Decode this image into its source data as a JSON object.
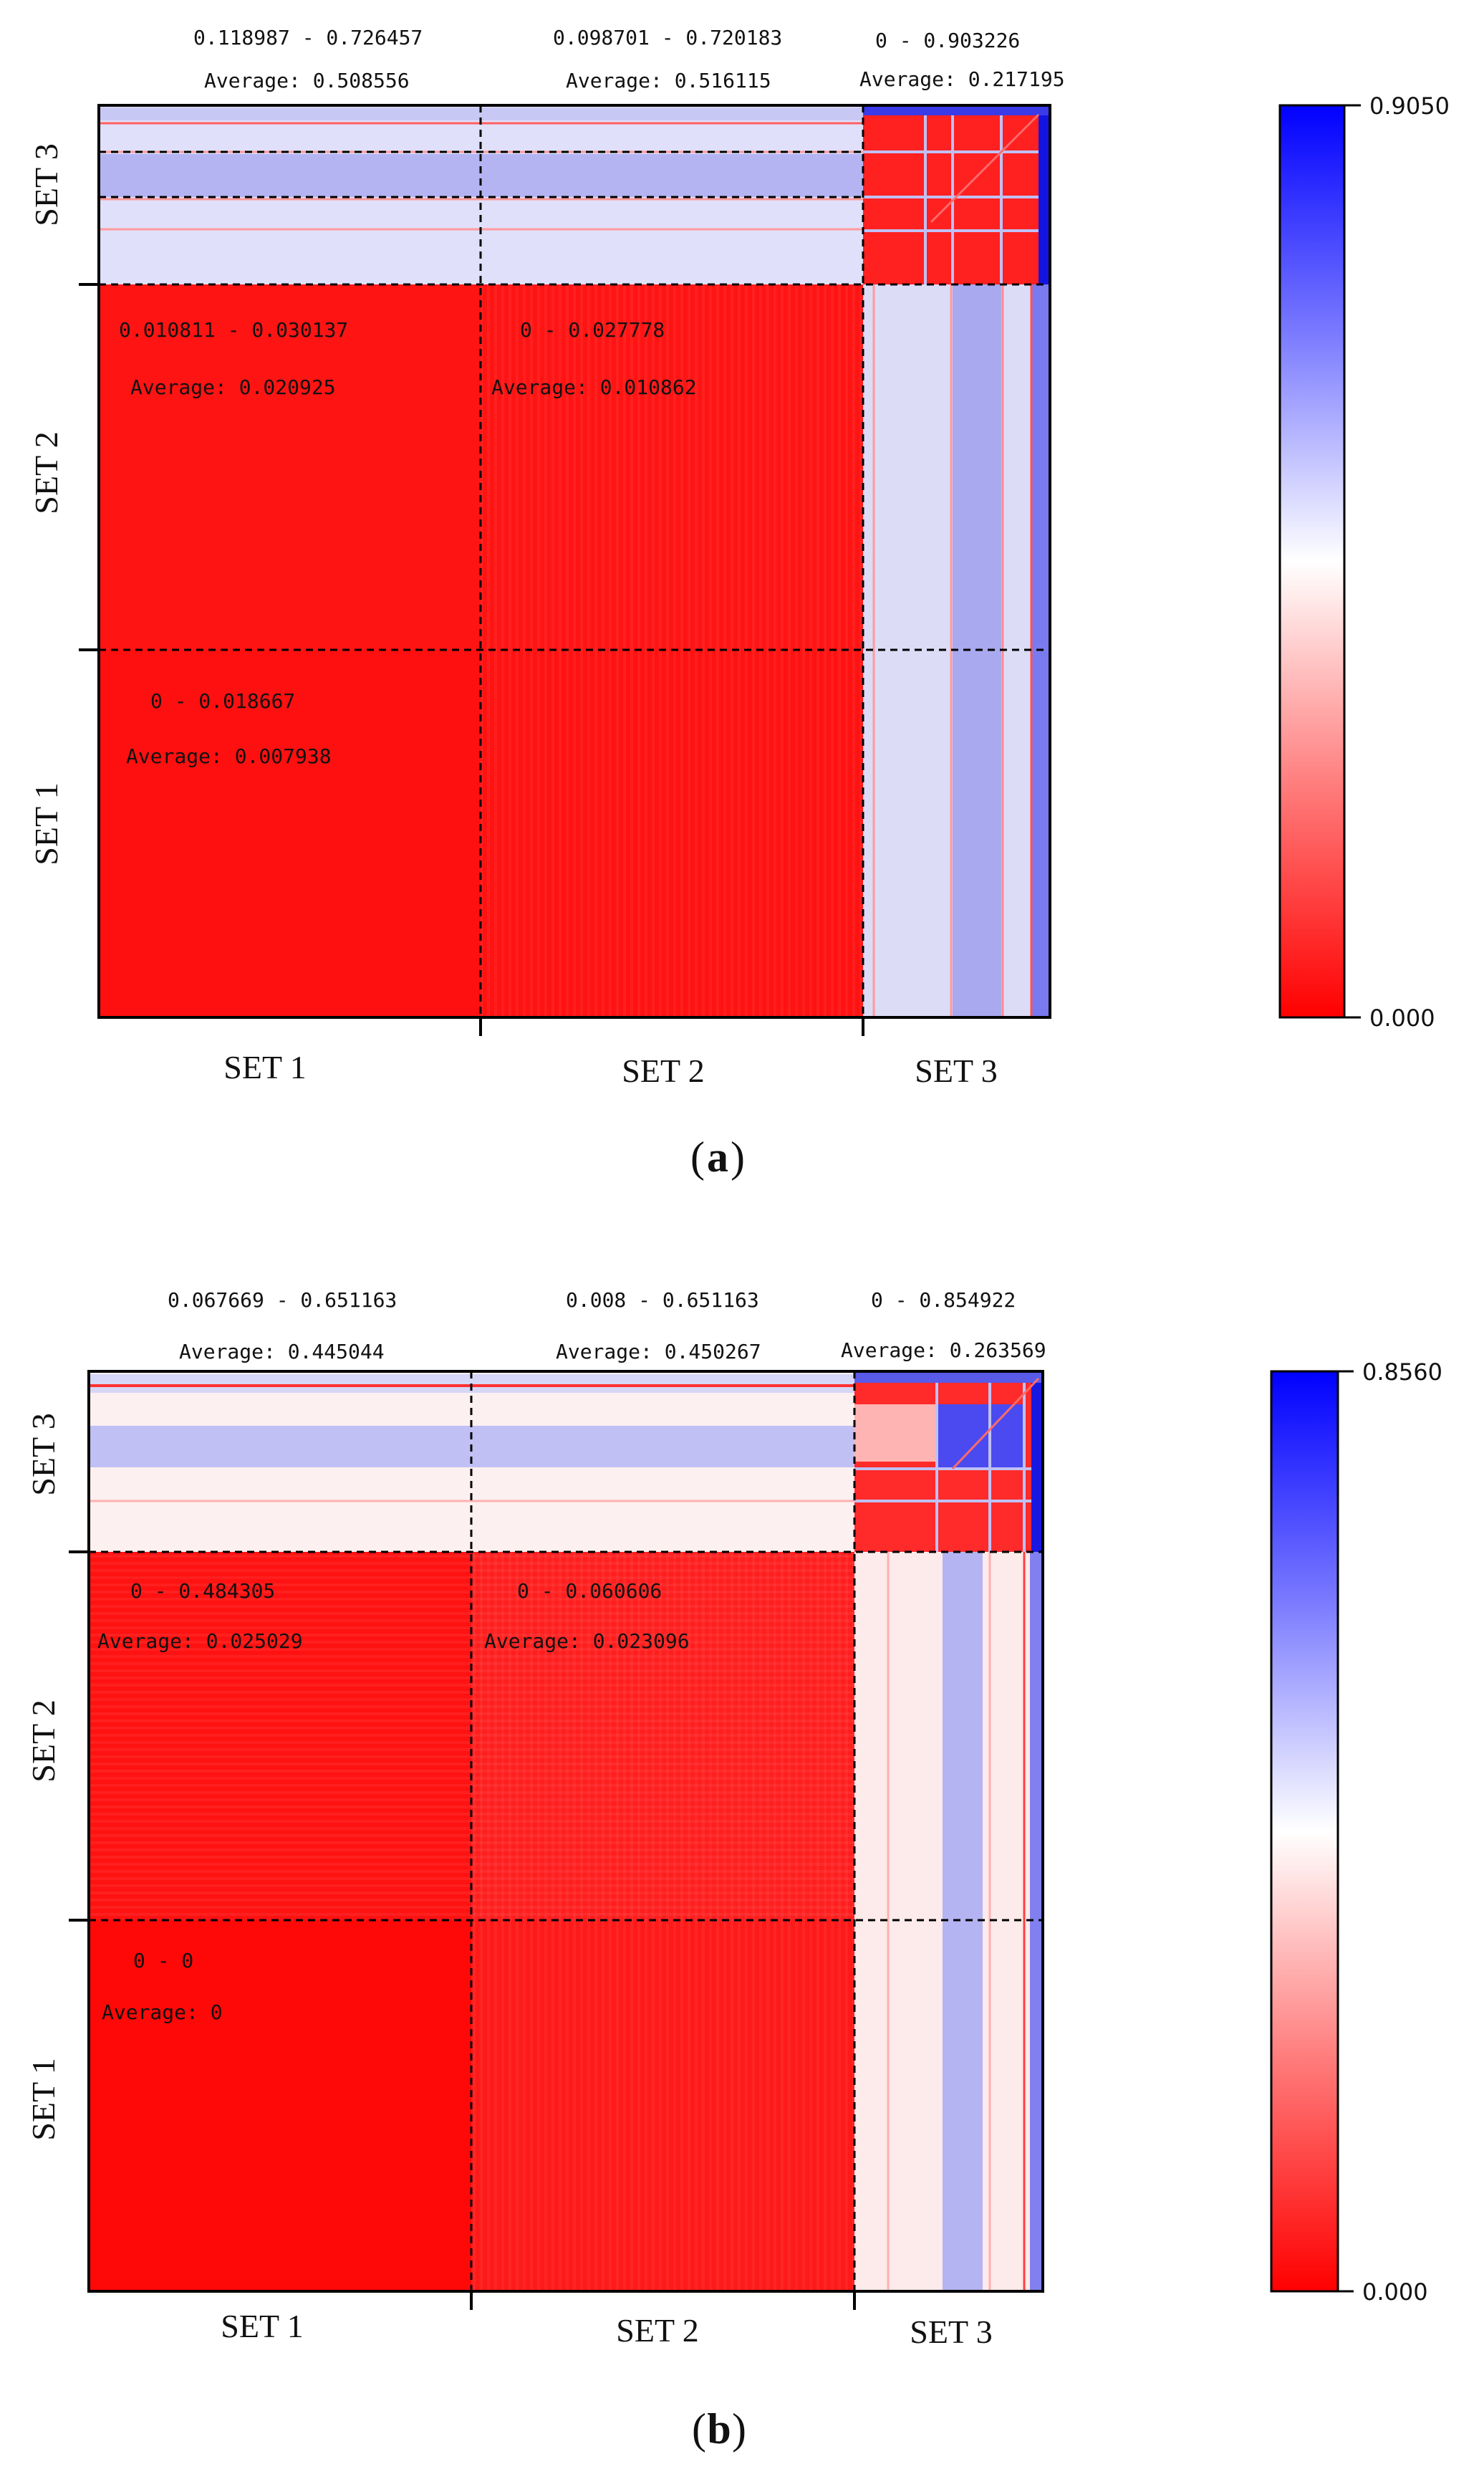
{
  "chart_data": [
    {
      "panel": "a",
      "type": "heatmap",
      "caption_letter": "a",
      "x_categories": [
        "SET 1",
        "SET 2",
        "SET 3"
      ],
      "y_categories": [
        "SET 1",
        "SET 2",
        "SET 3"
      ],
      "colorbar": {
        "min": 0.0,
        "max": 0.905,
        "min_label": "0.000",
        "max_label": "0.9050",
        "colors": [
          "#ff0000",
          "#ffffff",
          "#0000ff"
        ]
      },
      "blocks": [
        {
          "row": "SET 3",
          "col": "SET 1",
          "range": "0.118987 - 0.726457",
          "average": "Average: 0.508556",
          "value": 0.508556
        },
        {
          "row": "SET 3",
          "col": "SET 2",
          "range": "0.098701 - 0.720183",
          "average": "Average: 0.516115",
          "value": 0.516115
        },
        {
          "row": "SET 3",
          "col": "SET 3",
          "range": "0 - 0.903226",
          "average": "Average: 0.217195",
          "value": 0.217195
        },
        {
          "row": "SET 2",
          "col": "SET 1",
          "range": "0.010811 - 0.030137",
          "average": "Average: 0.020925",
          "value": 0.020925
        },
        {
          "row": "SET 2",
          "col": "SET 2",
          "range": "0 - 0.027778",
          "average": "Average: 0.010862",
          "value": 0.010862
        },
        {
          "row": "SET 1",
          "col": "SET 1",
          "range": "0 - 0.018667",
          "average": "Average: 0.007938",
          "value": 0.007938
        }
      ]
    },
    {
      "panel": "b",
      "type": "heatmap",
      "caption_letter": "b",
      "x_categories": [
        "SET 1",
        "SET 2",
        "SET 3"
      ],
      "y_categories": [
        "SET 1",
        "SET 2",
        "SET 3"
      ],
      "colorbar": {
        "min": 0.0,
        "max": 0.856,
        "min_label": "0.000",
        "max_label": "0.8560",
        "colors": [
          "#ff0000",
          "#ffffff",
          "#0000ff"
        ]
      },
      "blocks": [
        {
          "row": "SET 3",
          "col": "SET 1",
          "range": "0.067669 - 0.651163",
          "average": "Average: 0.445044",
          "value": 0.445044
        },
        {
          "row": "SET 3",
          "col": "SET 2",
          "range": "0.008 - 0.651163",
          "average": "Average: 0.450267",
          "value": 0.450267
        },
        {
          "row": "SET 3",
          "col": "SET 3",
          "range": "0 - 0.854922",
          "average": "Average: 0.263569",
          "value": 0.263569
        },
        {
          "row": "SET 2",
          "col": "SET 1",
          "range": "0 - 0.484305",
          "average": "Average: 0.025029",
          "value": 0.025029
        },
        {
          "row": "SET 2",
          "col": "SET 2",
          "range": "0 - 0.060606",
          "average": "Average: 0.023096",
          "value": 0.023096
        },
        {
          "row": "SET 1",
          "col": "SET 1",
          "range": "0 - 0",
          "average": "Average: 0",
          "value": 0
        }
      ]
    }
  ]
}
